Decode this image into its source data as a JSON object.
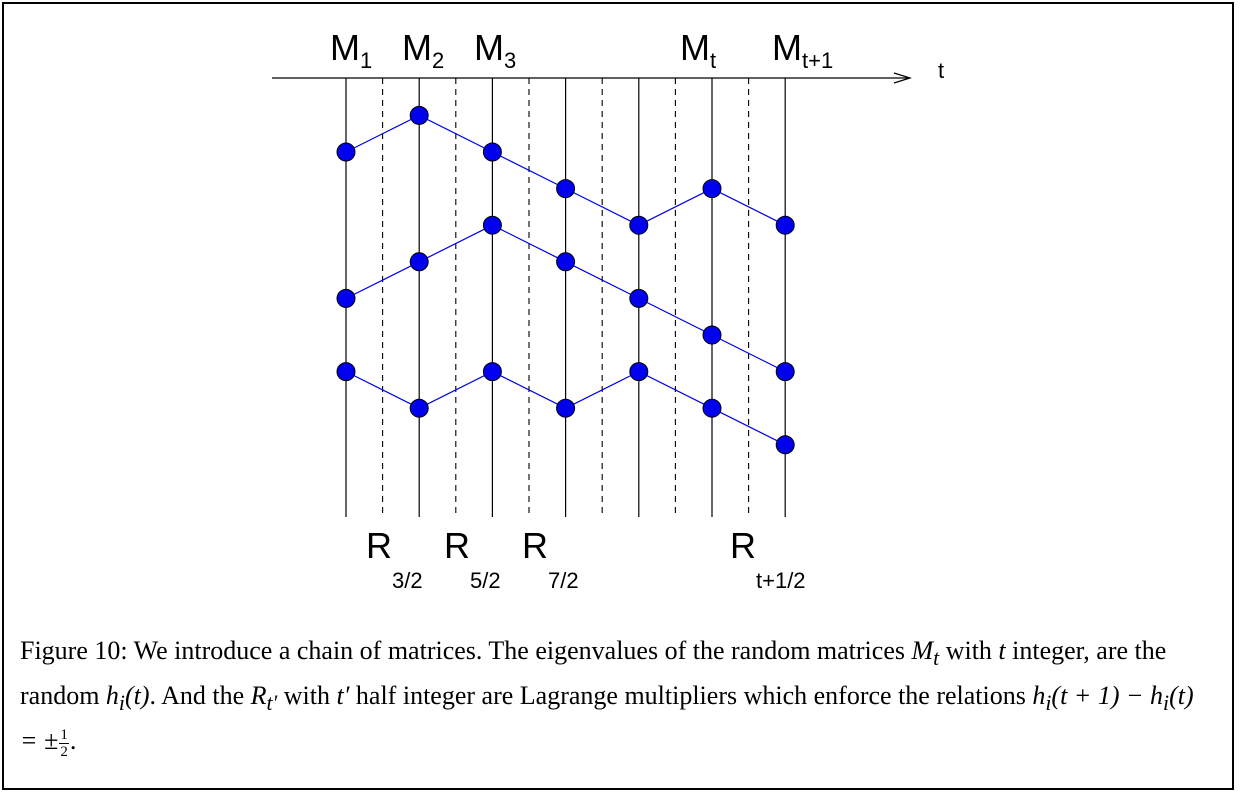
{
  "diagram": {
    "time_axis_label": "t",
    "top_labels": [
      {
        "base": "M",
        "sub": "1",
        "at": 1
      },
      {
        "base": "M",
        "sub": "2",
        "at": 2
      },
      {
        "base": "M",
        "sub": "3",
        "at": 3
      },
      {
        "base": "M",
        "sub": "t",
        "at": 6
      },
      {
        "base": "M",
        "sub": "t+1",
        "at": 7
      }
    ],
    "bottom_labels": [
      {
        "base": "R",
        "sub": "3/2",
        "at": 1.5
      },
      {
        "base": "R",
        "sub": "5/2",
        "at": 2.5
      },
      {
        "base": "R",
        "sub": "7/2",
        "at": 3.5
      },
      {
        "base": "R",
        "sub": "t+1/2",
        "at": 6.5
      }
    ],
    "integer_slices": [
      1,
      2,
      3,
      4,
      5,
      6,
      7
    ],
    "half_integer_slices": [
      1.5,
      2.5,
      3.5,
      4.5,
      5.5,
      6.5
    ],
    "paths": [
      {
        "name": "path-top",
        "heights": [
          0,
          1,
          0,
          -1,
          -2,
          -1,
          -2
        ]
      },
      {
        "name": "path-middle",
        "heights": [
          -4,
          -3,
          -2,
          -3,
          -4,
          -5,
          -6
        ]
      },
      {
        "name": "path-bottom",
        "heights": [
          -6,
          -7,
          -6,
          -7,
          -6,
          -7,
          -8
        ]
      }
    ],
    "colors": {
      "node": "#0000ee",
      "path": "#0000ee",
      "lines": "#000000"
    }
  },
  "caption": {
    "figure_label": "Figure 10:",
    "sentence1": "We introduce a chain of matrices. The eigenvalues of the random matrices",
    "m_symbol": "M",
    "m_sub": "t",
    "with": "with",
    "t_symbol": "t",
    "integer_text": "integer, are the random",
    "h_expr": "h",
    "h_sub": "i",
    "h_arg": "(t)",
    "and_the": ". And the",
    "r_symbol": "R",
    "r_sub": "t′",
    "with2": "with",
    "t_prime": "t′",
    "half_text": "half integer are Lagrange",
    "line3": "multipliers which enforce the relations",
    "relation": "h",
    "relation_sub": "i",
    "relation_rest": "(t + 1) − h",
    "relation_sub2": "i",
    "relation_end": "(t) = ±",
    "frac_num": "1",
    "frac_den": "2",
    "period": "."
  }
}
